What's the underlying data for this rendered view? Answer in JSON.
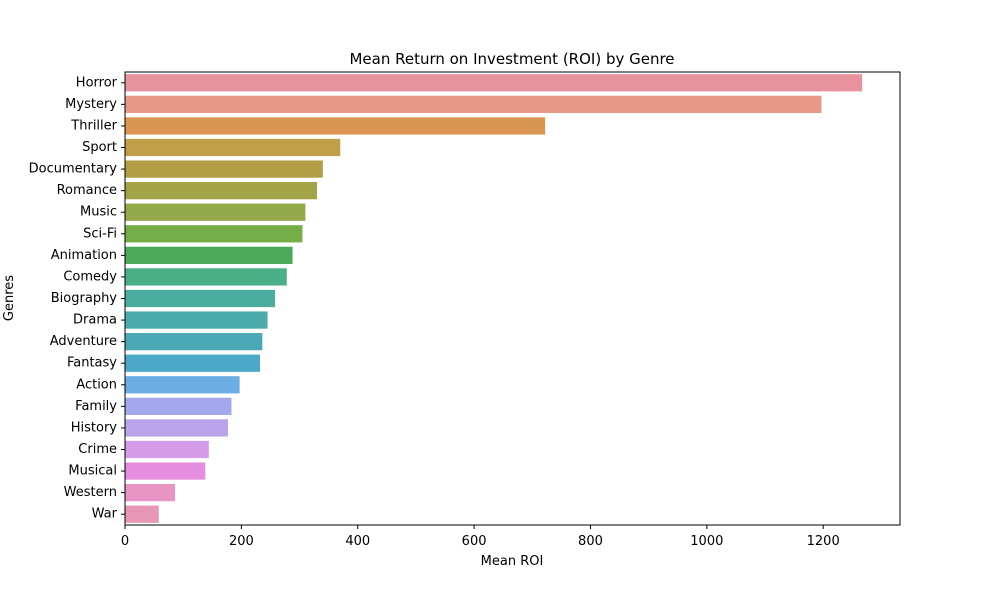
{
  "chart_data": {
    "type": "bar",
    "orientation": "horizontal",
    "title": "Mean Return on Investment (ROI) by Genre",
    "xlabel": "Mean ROI",
    "ylabel": "Genres",
    "xlim": [
      0,
      1332
    ],
    "xticks": [
      0,
      200,
      400,
      600,
      800,
      1000,
      1200
    ],
    "grid": false,
    "categories": [
      "Horror",
      "Mystery",
      "Thriller",
      "Sport",
      "Documentary",
      "Romance",
      "Music",
      "Sci-Fi",
      "Animation",
      "Comedy",
      "Biography",
      "Drama",
      "Adventure",
      "Fantasy",
      "Action",
      "Family",
      "History",
      "Crime",
      "Musical",
      "Western",
      "War"
    ],
    "values": [
      1267,
      1197,
      722,
      370,
      340,
      330,
      310,
      305,
      288,
      278,
      258,
      245,
      236,
      232,
      197,
      183,
      177,
      144,
      138,
      86,
      58
    ],
    "colors": [
      "#e8929d",
      "#e99786",
      "#db9553",
      "#c19f48",
      "#b29f45",
      "#a3a347",
      "#92a849",
      "#75ad47",
      "#4cab5b",
      "#4aae87",
      "#4aad9f",
      "#4aabaa",
      "#4aa9b5",
      "#4ba8c6",
      "#6aaee3",
      "#a3a7ec",
      "#bba3e9",
      "#d39be8",
      "#e58ddf",
      "#e895c5",
      "#e796b6"
    ]
  }
}
